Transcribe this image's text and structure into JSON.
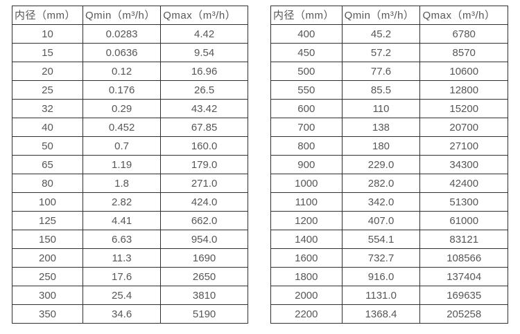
{
  "colors": {
    "background": "#ffffff",
    "border": "#2e2e2e",
    "text": "#565656"
  },
  "chart_data": [
    {
      "type": "table",
      "name": "flow-rate-table-small-diameters",
      "columns": [
        "内径（mm）",
        "Qmin（m³/h）",
        "Qmax（m³/h）"
      ],
      "rows": [
        [
          "10",
          "0.0283",
          "4.42"
        ],
        [
          "15",
          "0.0636",
          "9.54"
        ],
        [
          "20",
          "0.12",
          "16.96"
        ],
        [
          "25",
          "0.176",
          "26.5"
        ],
        [
          "32",
          "0.29",
          "43.42"
        ],
        [
          "40",
          "0.452",
          "67.85"
        ],
        [
          "50",
          "0.7",
          "160.0"
        ],
        [
          "65",
          "1.19",
          "179.0"
        ],
        [
          "80",
          "1.8",
          "271.0"
        ],
        [
          "100",
          "2.82",
          "424.0"
        ],
        [
          "125",
          "4.41",
          "662.0"
        ],
        [
          "150",
          "6.63",
          "954.0"
        ],
        [
          "200",
          "11.3",
          "1690"
        ],
        [
          "250",
          "17.6",
          "2650"
        ],
        [
          "300",
          "25.4",
          "3810"
        ],
        [
          "350",
          "34.6",
          "5190"
        ]
      ]
    },
    {
      "type": "table",
      "name": "flow-rate-table-large-diameters",
      "columns": [
        "内径（mm）",
        "Qmin（m³/h）",
        "Qmax（m³/h）"
      ],
      "rows": [
        [
          "400",
          "45.2",
          "6780"
        ],
        [
          "450",
          "57.2",
          "8570"
        ],
        [
          "500",
          "77.6",
          "10600"
        ],
        [
          "550",
          "85.5",
          "12800"
        ],
        [
          "600",
          "110",
          "15200"
        ],
        [
          "700",
          "138",
          "20700"
        ],
        [
          "800",
          "180",
          "27100"
        ],
        [
          "900",
          "229.0",
          "34300"
        ],
        [
          "1000",
          "282.0",
          "42400"
        ],
        [
          "1100",
          "342.0",
          "51300"
        ],
        [
          "1200",
          "407.0",
          "61000"
        ],
        [
          "1400",
          "554.1",
          "83121"
        ],
        [
          "1600",
          "732.7",
          "108566"
        ],
        [
          "1800",
          "916.0",
          "137404"
        ],
        [
          "2000",
          "1131.0",
          "169635"
        ],
        [
          "2200",
          "1368.4",
          "205258"
        ]
      ]
    }
  ]
}
